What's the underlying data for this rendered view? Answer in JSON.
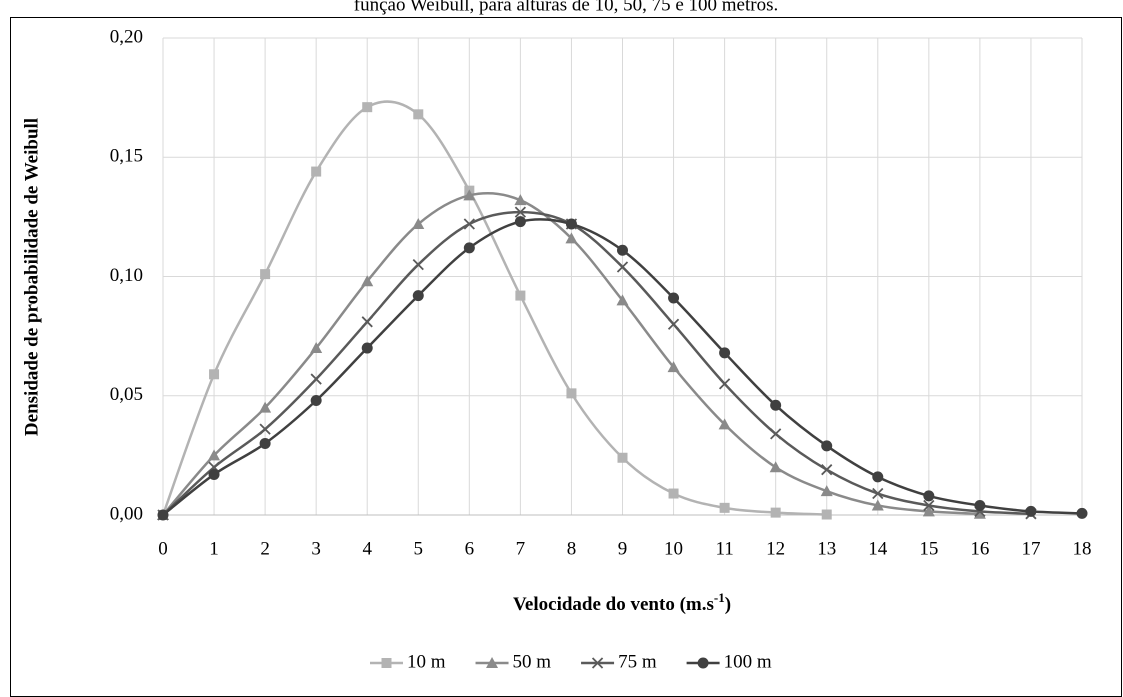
{
  "chart_data": {
    "type": "line",
    "title": "função Weibull, para alturas de 10, 50, 75 e 100 metros.",
    "x_label": [
      "Velocidade do vento (m.s",
      "-1",
      ")"
    ],
    "y_label": "Densidade de probabilidade de Weibull",
    "x": [
      0,
      1,
      2,
      3,
      4,
      5,
      6,
      7,
      8,
      9,
      10,
      11,
      12,
      13,
      14,
      15,
      16,
      17,
      18
    ],
    "xlim": [
      0,
      18
    ],
    "xticks": [
      0,
      1,
      2,
      3,
      4,
      5,
      6,
      7,
      8,
      9,
      10,
      11,
      12,
      13,
      14,
      15,
      16,
      17,
      18
    ],
    "ylim": [
      0,
      0.2
    ],
    "yticks": [
      {
        "value": 0,
        "label": "0,00"
      },
      {
        "value": 0.05,
        "label": "0,05"
      },
      {
        "value": 0.1,
        "label": "0,10"
      },
      {
        "value": 0.15,
        "label": "0,15"
      },
      {
        "value": 0.2,
        "label": "0,20"
      }
    ],
    "grid": true,
    "legend": "bottom",
    "series": [
      {
        "name": "10 m",
        "color": "#b3b3b3",
        "marker": "square",
        "values": [
          0,
          0.059,
          0.101,
          0.144,
          0.171,
          0.168,
          0.136,
          0.092,
          0.051,
          0.024,
          0.009,
          0.003,
          0.001,
          0.0002,
          null,
          null,
          null,
          null,
          null
        ]
      },
      {
        "name": "50 m",
        "color": "#8a8a8a",
        "marker": "triangle",
        "values": [
          0,
          0.025,
          0.045,
          0.07,
          0.098,
          0.122,
          0.134,
          0.132,
          0.116,
          0.09,
          0.062,
          0.038,
          0.02,
          0.01,
          0.004,
          0.0015,
          0.0005,
          null,
          null
        ]
      },
      {
        "name": "75 m",
        "color": "#5a5a5a",
        "marker": "cross",
        "values": [
          0,
          0.02,
          0.036,
          0.057,
          0.081,
          0.105,
          0.122,
          0.127,
          0.122,
          0.104,
          0.08,
          0.055,
          0.034,
          0.019,
          0.009,
          0.004,
          0.0015,
          0.0005,
          null
        ]
      },
      {
        "name": "100 m",
        "color": "#404040",
        "marker": "circle",
        "values": [
          0,
          0.017,
          0.03,
          0.048,
          0.07,
          0.092,
          0.112,
          0.123,
          0.122,
          0.111,
          0.091,
          0.068,
          0.046,
          0.029,
          0.016,
          0.008,
          0.004,
          0.0015,
          0.0007
        ]
      }
    ]
  }
}
